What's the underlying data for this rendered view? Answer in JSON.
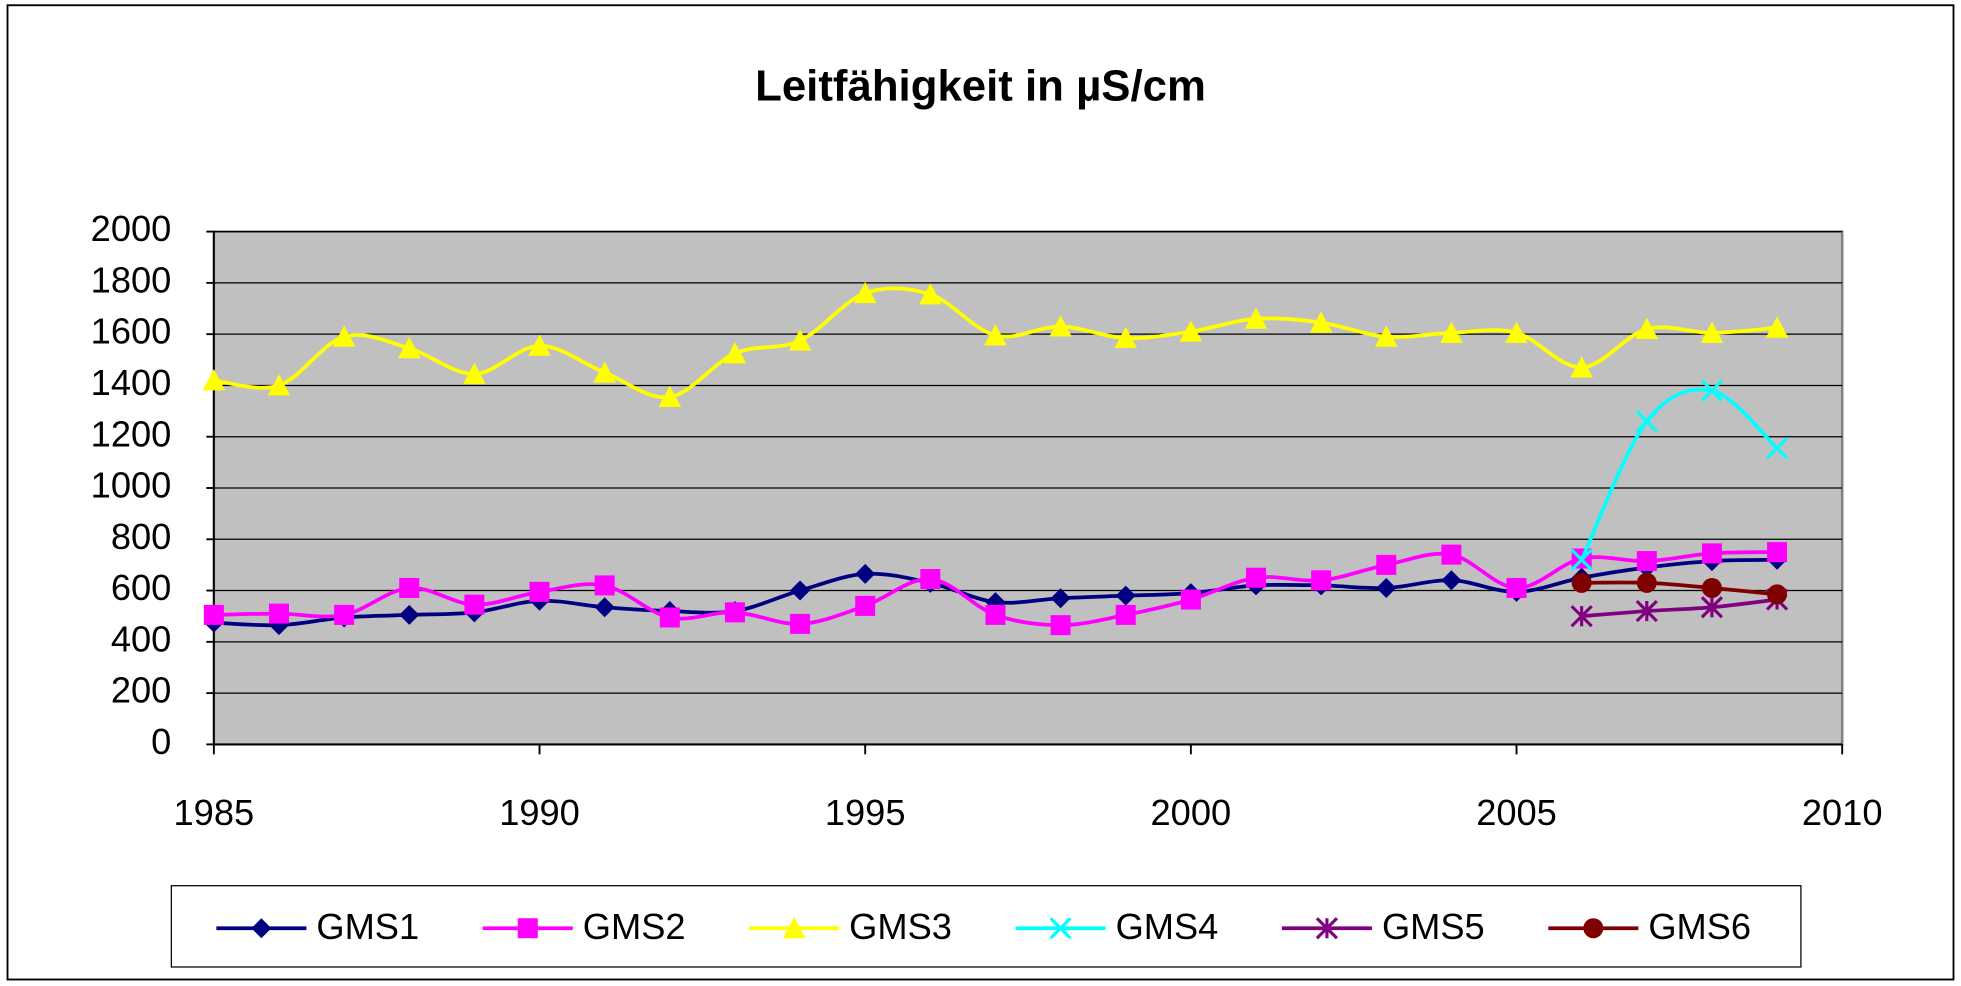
{
  "chart_data": {
    "type": "line",
    "title": "Leitfähigkeit in µS/cm",
    "x": [
      1985,
      1986,
      1987,
      1988,
      1989,
      1990,
      1991,
      1992,
      1993,
      1994,
      1995,
      1996,
      1997,
      1998,
      1999,
      2000,
      2001,
      2002,
      2003,
      2004,
      2005,
      2006,
      2007,
      2008,
      2009
    ],
    "xlim": [
      1985,
      2010
    ],
    "xticks": [
      1985,
      1990,
      1995,
      2000,
      2005,
      2010
    ],
    "ylim": [
      0,
      2000
    ],
    "yticks": [
      0,
      200,
      400,
      600,
      800,
      1000,
      1200,
      1400,
      1600,
      1800,
      2000
    ],
    "grid": true,
    "legend": "bottom",
    "smooth": true,
    "series": [
      {
        "name": "GMS1",
        "color": "#000080",
        "marker": "diamond",
        "values": [
          475,
          465,
          495,
          505,
          515,
          560,
          535,
          520,
          520,
          600,
          665,
          630,
          555,
          570,
          580,
          590,
          620,
          620,
          610,
          640,
          595,
          650,
          690,
          715,
          720
        ]
      },
      {
        "name": "GMS2",
        "color": "#ff00ff",
        "marker": "square",
        "values": [
          505,
          510,
          505,
          610,
          545,
          595,
          620,
          495,
          515,
          470,
          540,
          645,
          505,
          465,
          505,
          565,
          650,
          640,
          700,
          740,
          610,
          725,
          715,
          745,
          750
        ]
      },
      {
        "name": "GMS3",
        "color": "#ffff00",
        "marker": "triangle",
        "values": [
          1420,
          1400,
          1590,
          1545,
          1445,
          1555,
          1450,
          1355,
          1525,
          1575,
          1760,
          1755,
          1595,
          1630,
          1585,
          1610,
          1660,
          1645,
          1590,
          1605,
          1605,
          1470,
          1620,
          1605,
          1625
        ]
      },
      {
        "name": "GMS4",
        "color": "#00ffff",
        "marker": "x",
        "values": [
          null,
          null,
          null,
          null,
          null,
          null,
          null,
          null,
          null,
          null,
          null,
          null,
          null,
          null,
          null,
          null,
          null,
          null,
          null,
          null,
          null,
          720,
          1260,
          1380,
          1155
        ]
      },
      {
        "name": "GMS5",
        "color": "#800080",
        "marker": "asterisk",
        "values": [
          null,
          null,
          null,
          null,
          null,
          null,
          null,
          null,
          null,
          null,
          null,
          null,
          null,
          null,
          null,
          null,
          null,
          null,
          null,
          null,
          null,
          500,
          520,
          535,
          565
        ]
      },
      {
        "name": "GMS6",
        "color": "#800000",
        "marker": "circle",
        "values": [
          null,
          null,
          null,
          null,
          null,
          null,
          null,
          null,
          null,
          null,
          null,
          null,
          null,
          null,
          null,
          null,
          null,
          null,
          null,
          null,
          null,
          630,
          630,
          610,
          585
        ]
      }
    ]
  }
}
